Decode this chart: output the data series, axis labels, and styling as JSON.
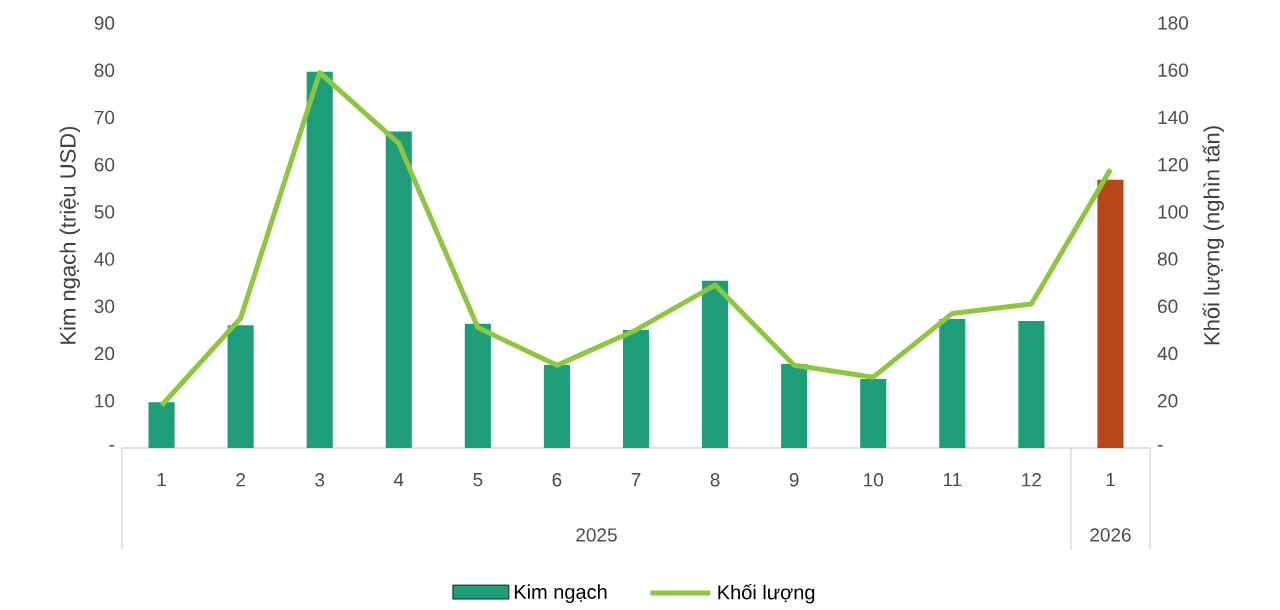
{
  "chart_data": {
    "type": "bar",
    "categories": [
      "1",
      "2",
      "3",
      "4",
      "5",
      "6",
      "7",
      "8",
      "9",
      "10",
      "11",
      "12",
      "1"
    ],
    "series": [
      {
        "name": "Kim ngạch",
        "colors": [
          "#1e9e78",
          "#1e9e78",
          "#1e9e78",
          "#1e9e78",
          "#1e9e78",
          "#1e9e78",
          "#1e9e78",
          "#1e9e78",
          "#1e9e78",
          "#1e9e78",
          "#1e9e78",
          "#1e9e78",
          "#b7471b"
        ],
        "values": [
          9.7,
          26,
          79.7,
          67,
          26.3,
          17.6,
          25,
          35.4,
          17.8,
          14.6,
          27.3,
          26.9,
          56.8
        ]
      },
      {
        "name": "Khối lượng",
        "type": "line",
        "axis": "y2",
        "color": "#8dc63f",
        "values": [
          18,
          55,
          159,
          129,
          51,
          35,
          50,
          69,
          35,
          30,
          57,
          61,
          118
        ]
      }
    ],
    "ylabel": "Kim ngạch (triệu USD)",
    "y2label": "Khối lượng (nghìn tấn)",
    "ylim": [
      0,
      90
    ],
    "yticks": [
      {
        "value": 0,
        "label": "-"
      },
      10,
      20,
      30,
      40,
      50,
      60,
      70,
      80,
      90
    ],
    "y2lim": [
      0,
      180
    ],
    "y2ticks": [
      {
        "value": 0,
        "label": "-"
      },
      20,
      40,
      60,
      80,
      100,
      120,
      140,
      160,
      180
    ],
    "annotations": [
      "2025",
      "2026"
    ],
    "legend": "bottom"
  }
}
